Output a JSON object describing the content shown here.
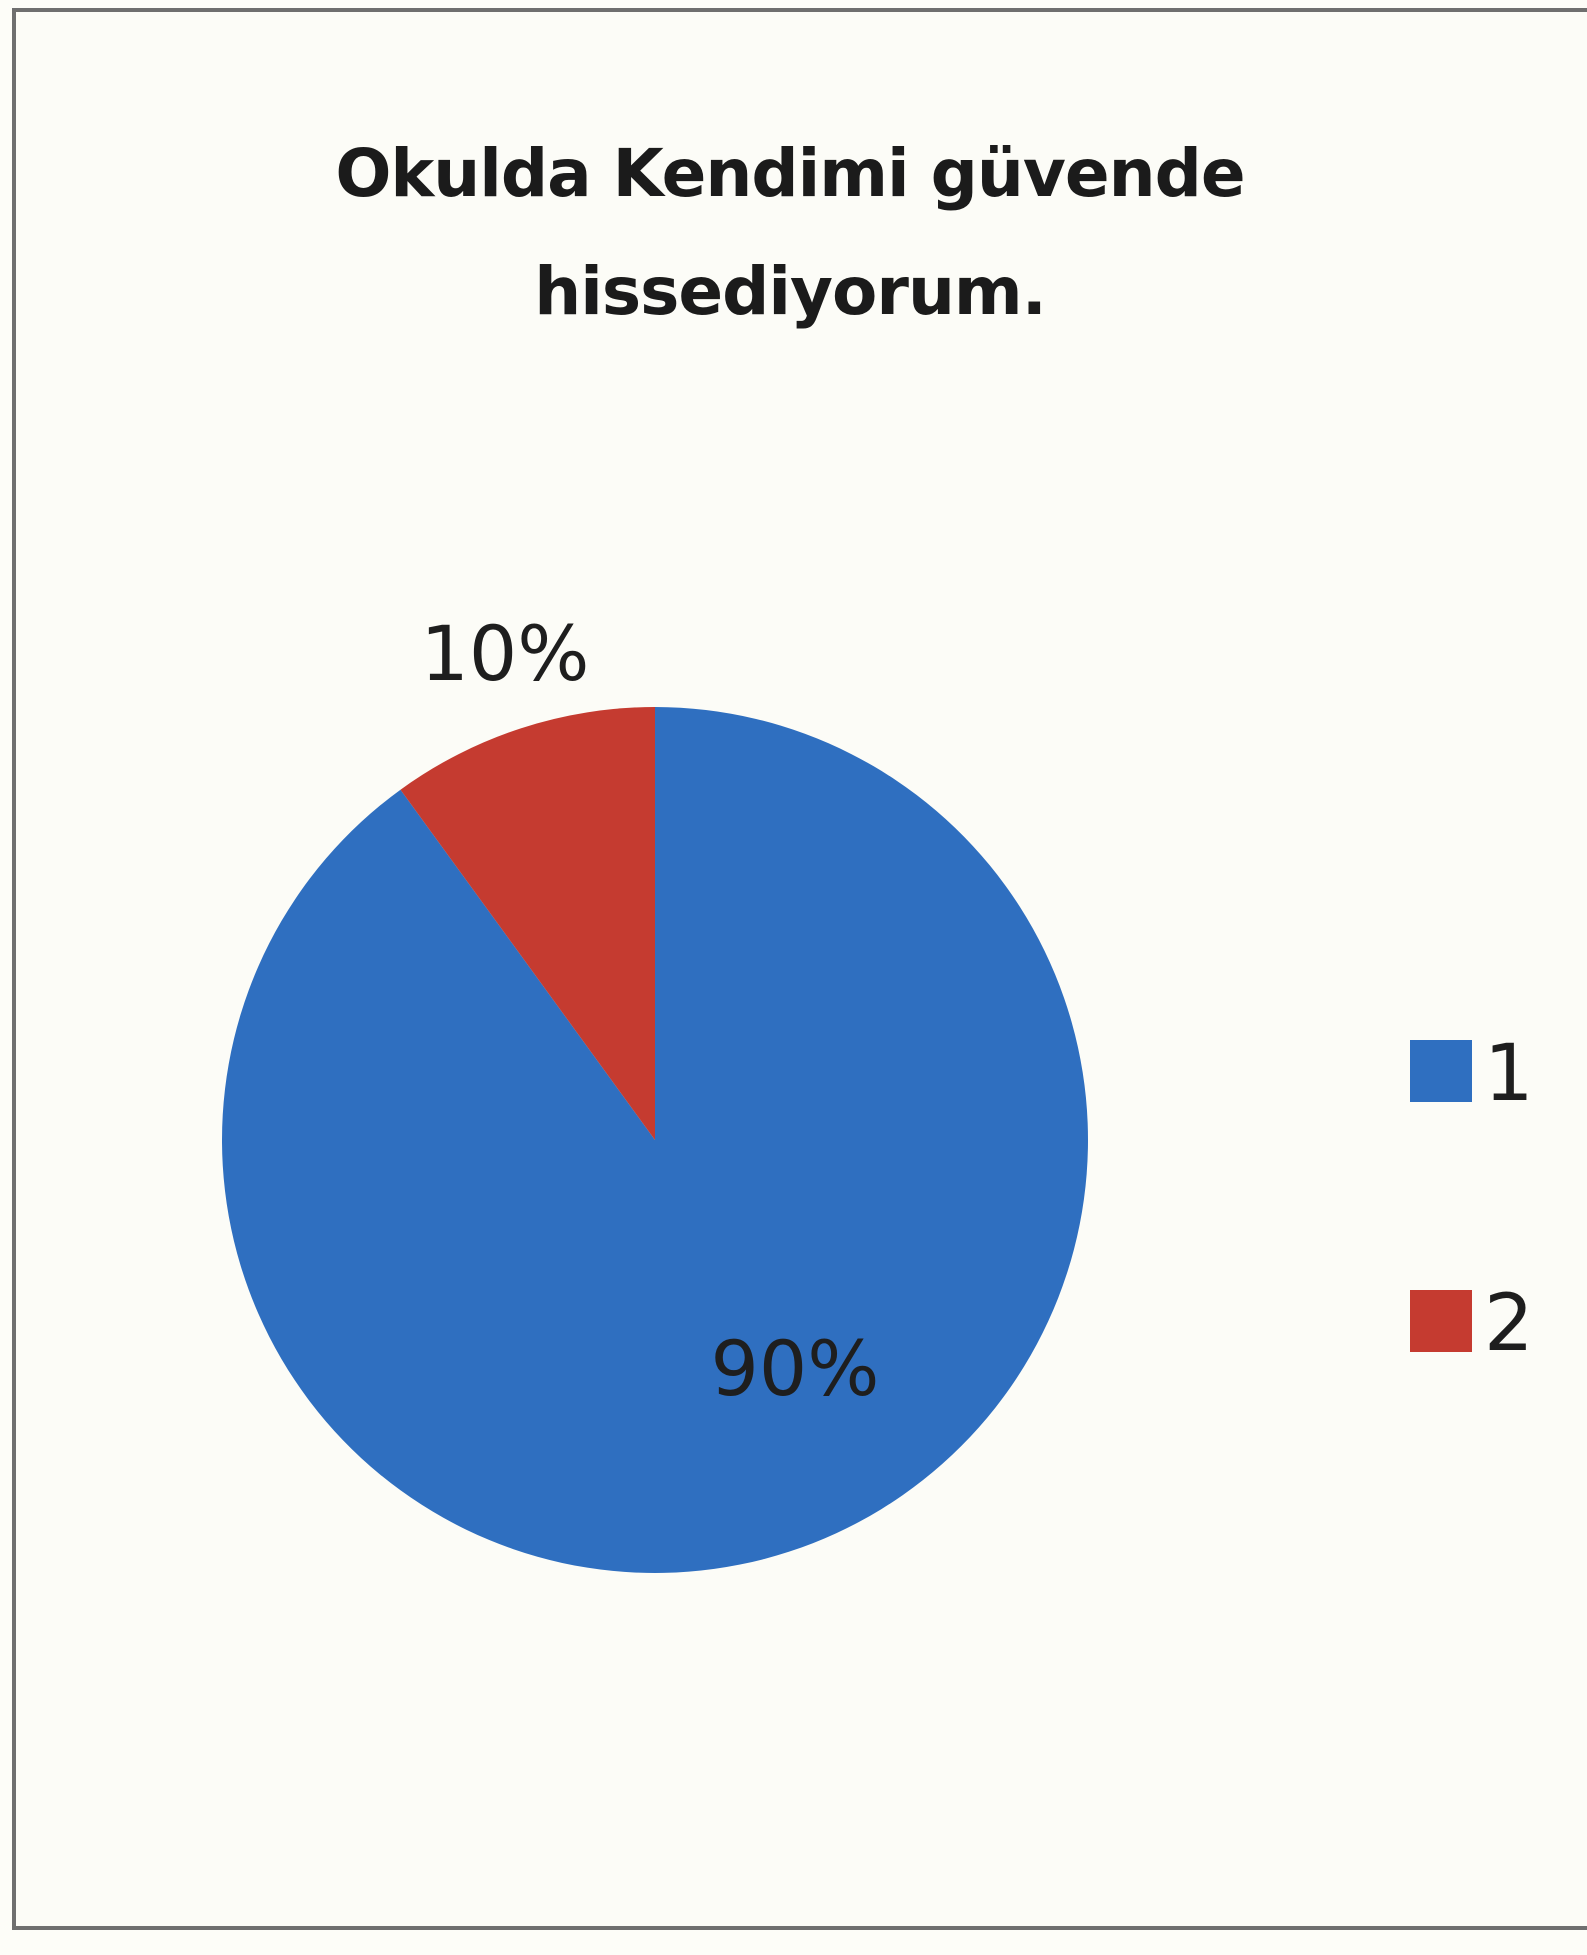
{
  "chart_data": {
    "type": "pie",
    "title": "Okulda Kendimi güvende hissediyorum.",
    "categories": [
      "1",
      "2"
    ],
    "values": [
      90,
      10
    ],
    "data_labels": [
      "90%",
      "10%"
    ],
    "colors": [
      "#2f6fc0",
      "#c53b30"
    ],
    "legend_position": "right"
  }
}
